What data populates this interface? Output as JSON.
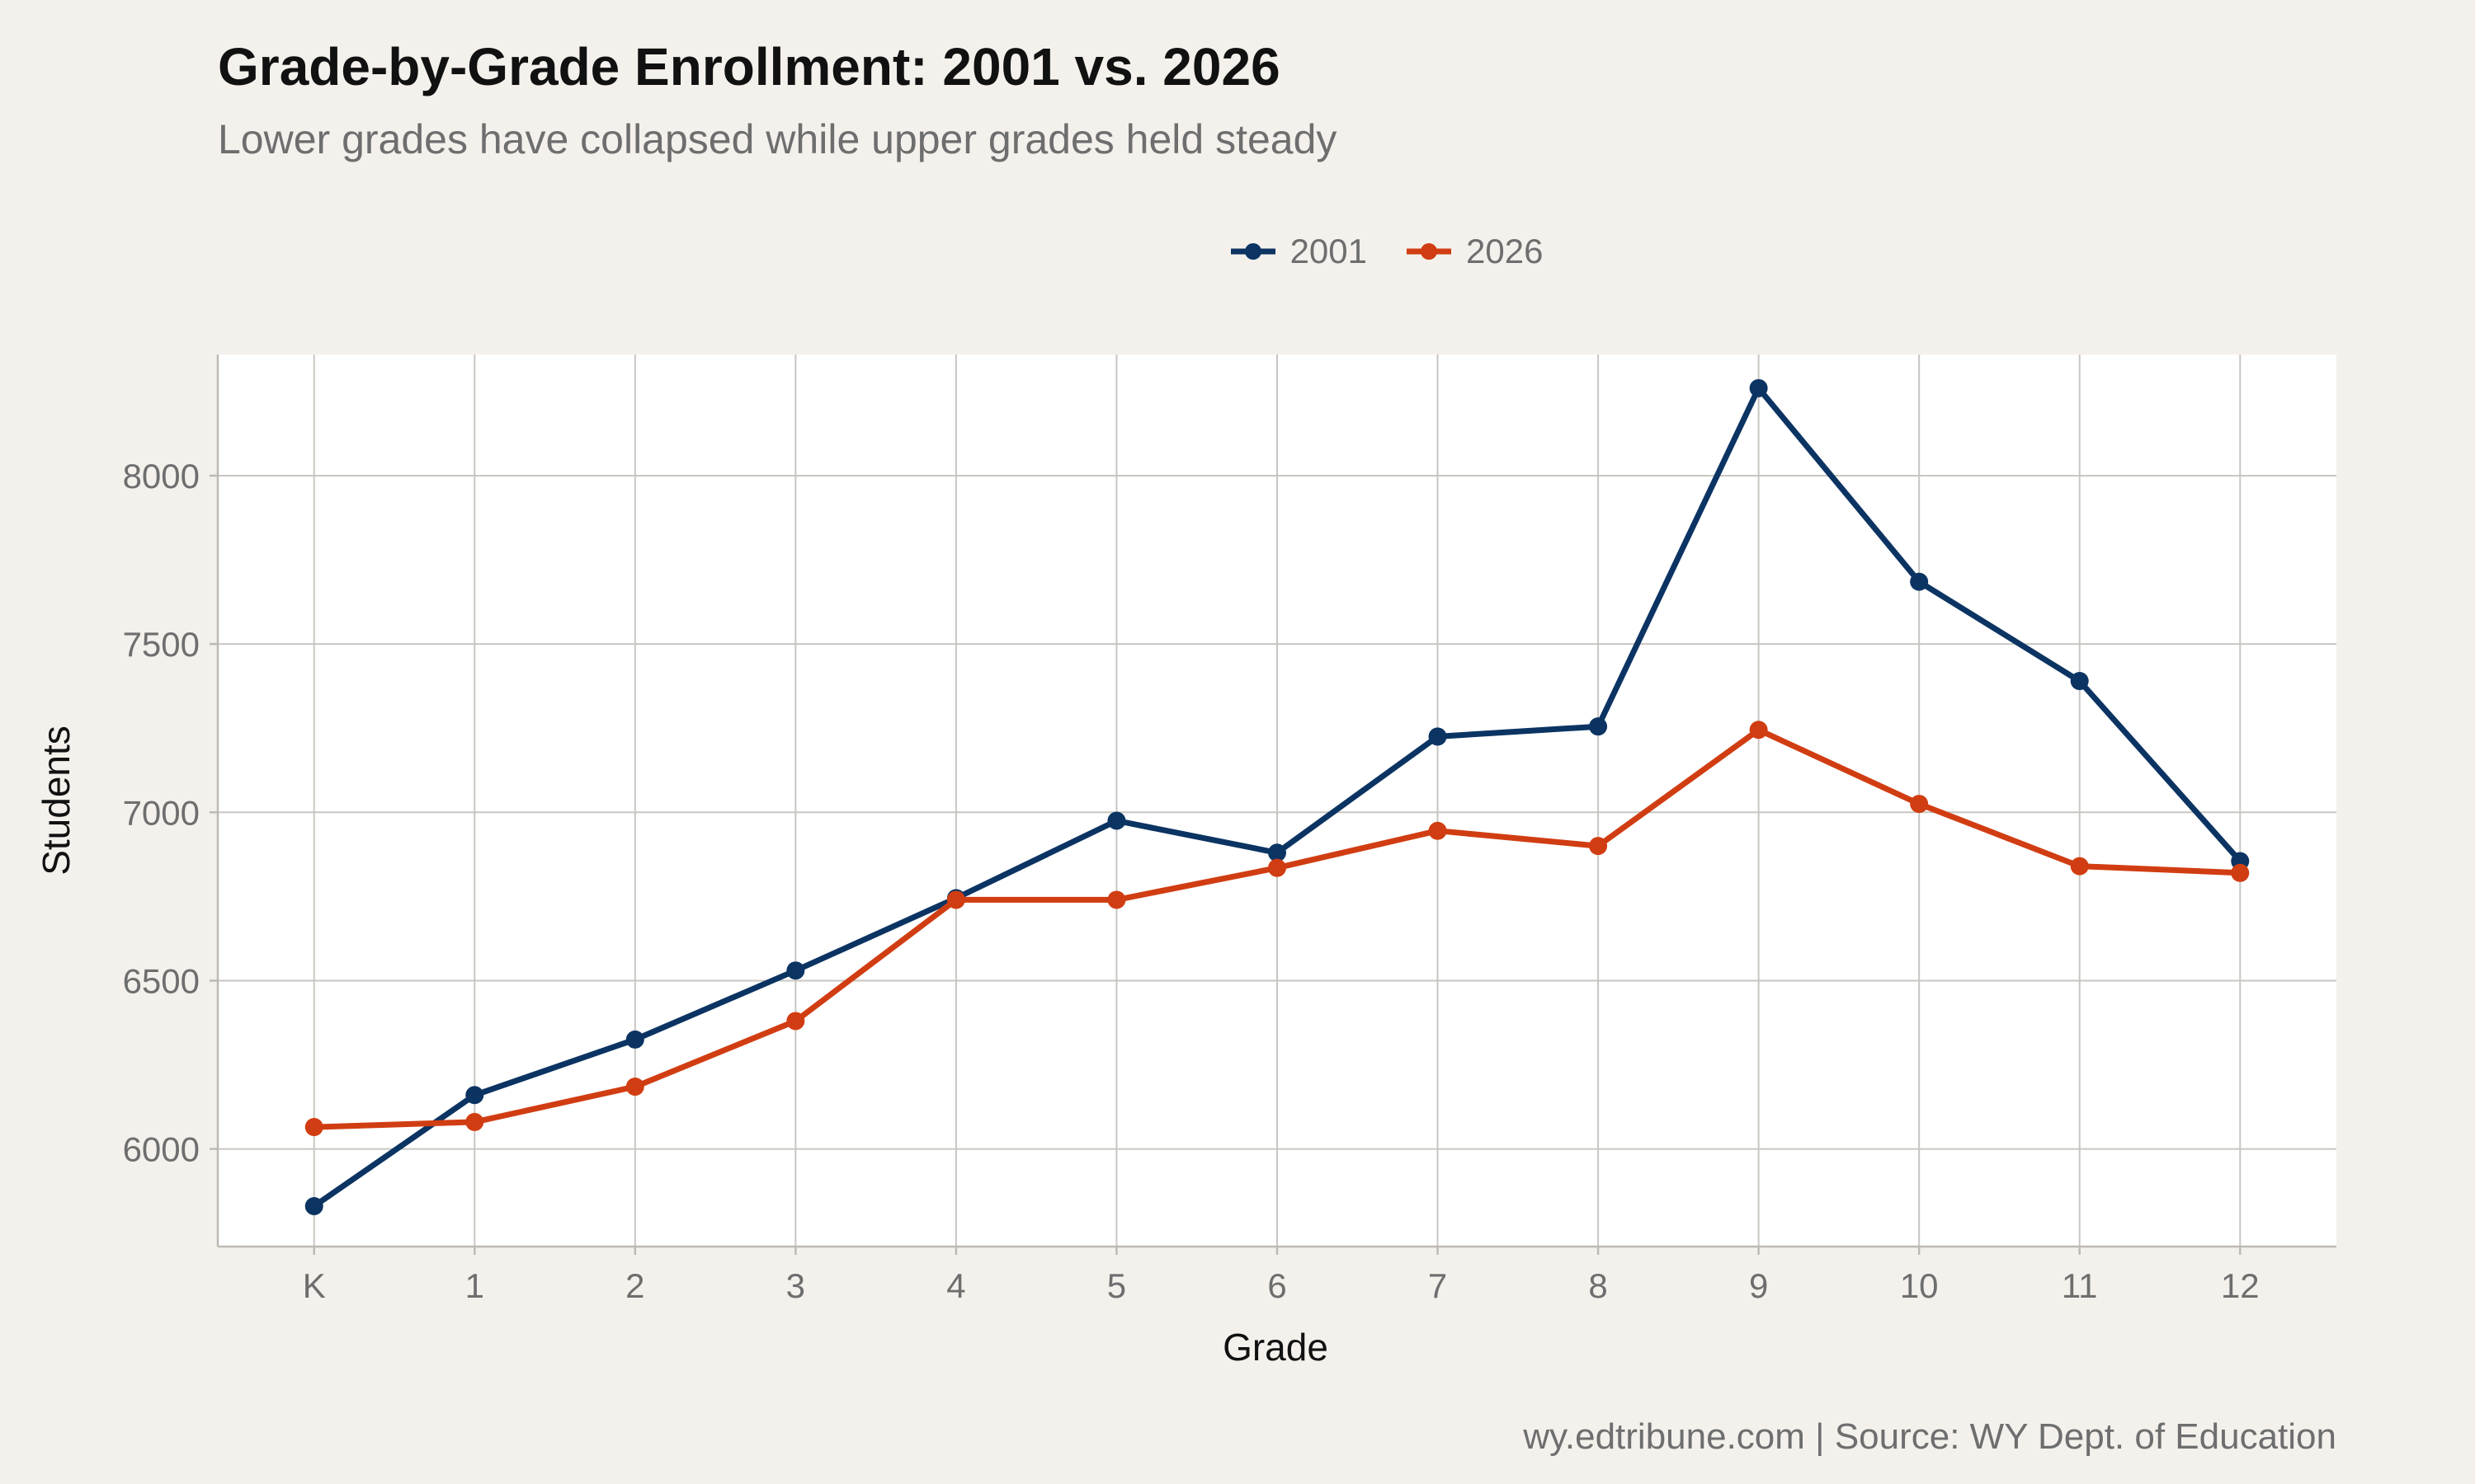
{
  "title": "Grade-by-Grade Enrollment: 2001 vs. 2026",
  "subtitle": "Lower grades have collapsed while upper grades held steady",
  "caption": "wy.edtribune.com | Source: WY Dept. of Education",
  "chart_data": {
    "type": "line",
    "xlabel": "Grade",
    "ylabel": "Students",
    "categories": [
      "K",
      "1",
      "2",
      "3",
      "4",
      "5",
      "6",
      "7",
      "8",
      "9",
      "10",
      "11",
      "12"
    ],
    "ylim": [
      5710,
      8360
    ],
    "yticks": [
      6000,
      6500,
      7000,
      7500,
      8000
    ],
    "grid": true,
    "legend_position": "top",
    "series": [
      {
        "name": "2001",
        "color": "#0b3463",
        "values": [
          5830,
          6160,
          6325,
          6530,
          6745,
          6975,
          6880,
          7225,
          7255,
          8260,
          7685,
          7390,
          6855
        ]
      },
      {
        "name": "2026",
        "color": "#d13d12",
        "values": [
          6065,
          6080,
          6185,
          6380,
          6740,
          6740,
          6835,
          6945,
          6900,
          7245,
          7025,
          6840,
          6820
        ]
      }
    ]
  }
}
